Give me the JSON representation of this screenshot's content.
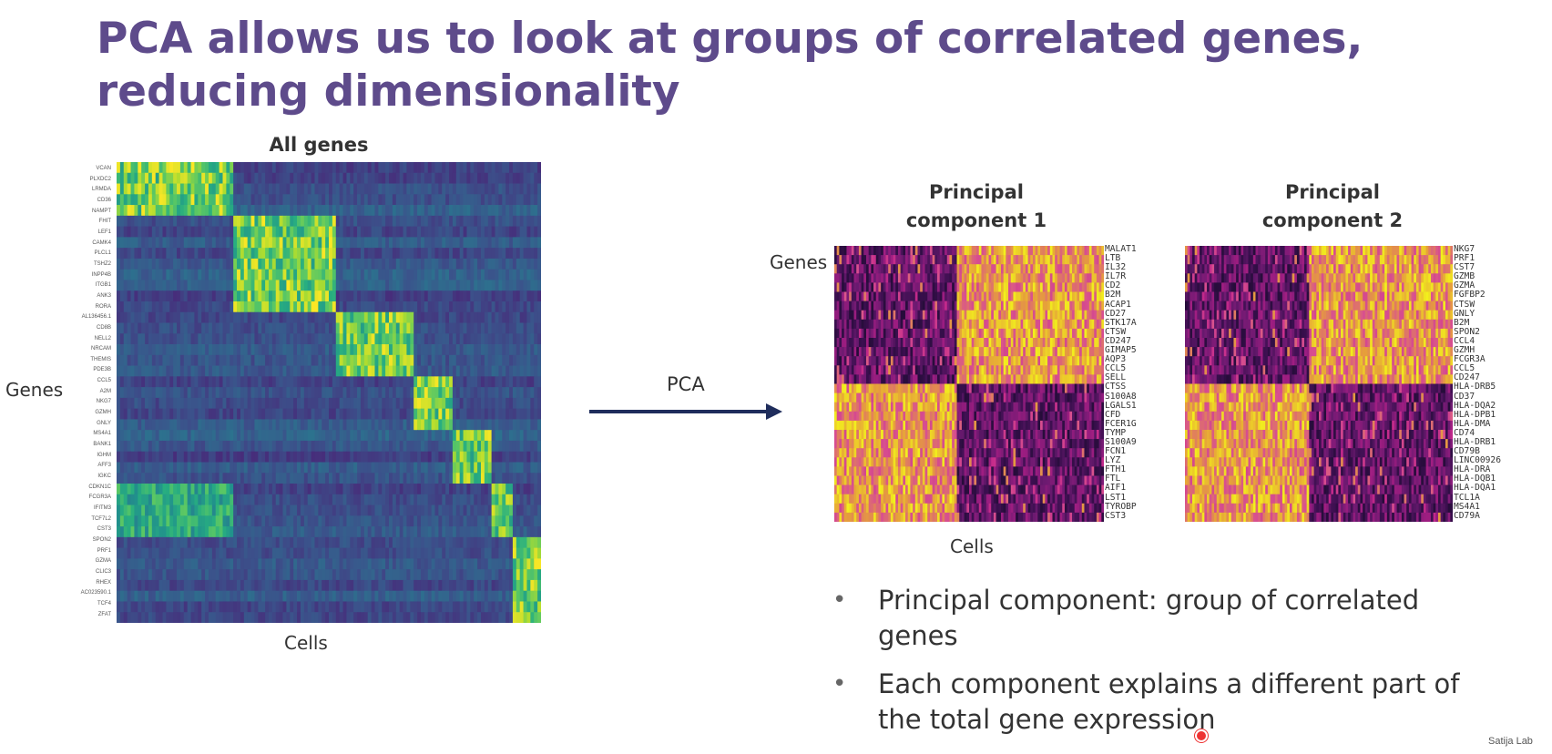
{
  "slide": {
    "title": "PCA allows us to look at groups of correlated genes, reducing dimensionality",
    "credit": "Satija Lab"
  },
  "left_heatmap": {
    "title": "All genes",
    "y_label": "Genes",
    "x_label": "Cells",
    "genes": [
      "VCAN",
      "PLXDC2",
      "LRMDA",
      "CD36",
      "NAMPT",
      "FHIT",
      "LEF1",
      "CAMK4",
      "PLCL1",
      "TSHZ2",
      "INPP4B",
      "ITGB1",
      "ANK3",
      "RORA",
      "AL136456.1",
      "CD8B",
      "NELL2",
      "NRCAM",
      "THEMIS",
      "PDE3B",
      "CCL5",
      "A2M",
      "NKG7",
      "GZMH",
      "GNLY",
      "MS4A1",
      "BANK1",
      "IGHM",
      "AFF3",
      "IGKC",
      "CDKN1C",
      "FCGR3A",
      "IFITM3",
      "TCF7L2",
      "CST3",
      "SPON2",
      "PRF1",
      "GZMA",
      "CLIC3",
      "RHEX",
      "AC023590.1",
      "TCF4",
      "ZFAT"
    ]
  },
  "arrow": {
    "label": "PCA"
  },
  "pc1": {
    "title_line1": "Principal",
    "title_line2": "component 1",
    "y_label": "Genes",
    "x_label": "Cells",
    "genes": [
      "MALAT1",
      "LTB",
      "IL32",
      "IL7R",
      "CD2",
      "B2M",
      "ACAP1",
      "CD27",
      "STK17A",
      "CTSW",
      "CD247",
      "GIMAP5",
      "AQP3",
      "CCL5",
      "SELL",
      "CTSS",
      "S100A8",
      "LGALS1",
      "CFD",
      "FCER1G",
      "TYMP",
      "S100A9",
      "FCN1",
      "LYZ",
      "FTH1",
      "FTL",
      "AIF1",
      "LST1",
      "TYROBP",
      "CST3"
    ]
  },
  "pc2": {
    "title_line1": "Principal",
    "title_line2": "component 2",
    "genes": [
      "NKG7",
      "PRF1",
      "CST7",
      "GZMB",
      "GZMA",
      "FGFBP2",
      "CTSW",
      "GNLY",
      "B2M",
      "SPON2",
      "CCL4",
      "GZMH",
      "FCGR3A",
      "CCL5",
      "CD247",
      "HLA-DRB5",
      "CD37",
      "HLA-DQA2",
      "HLA-DPB1",
      "HLA-DMA",
      "CD74",
      "HLA-DRB1",
      "CD79B",
      "LINC00926",
      "HLA-DRA",
      "HLA-DQB1",
      "HLA-DQA1",
      "TCL1A",
      "MS4A1",
      "CD79A"
    ]
  },
  "bullets": [
    {
      "text": "Principal component: group of correlated genes"
    },
    {
      "text": "Each component explains a different part of the total gene expression"
    }
  ],
  "colors": {
    "title": "#5e4b8b",
    "viridis_low": "#472c7a",
    "viridis_high": "#f1e51d",
    "magma_low": "#3b0f4f",
    "magma_high": "#f2f01c",
    "arrow": "#1f2d5c"
  }
}
